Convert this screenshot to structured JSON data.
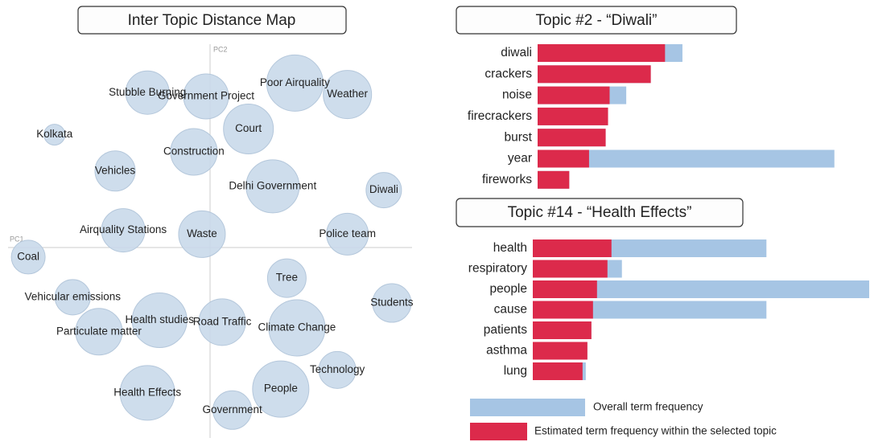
{
  "chart_data": [
    {
      "type": "bubble",
      "title": "Inter Topic Distance Map",
      "xlabel": "PC1",
      "ylabel": "PC2",
      "xlim": [
        -1,
        1
      ],
      "ylim": [
        -1,
        1
      ],
      "labels": [
        "Stubble Burning",
        "Government Project",
        "Poor Airquality",
        "Weather",
        "Court",
        "Kolkata",
        "Construction",
        "Vehicles",
        "Delhi Government",
        "Diwali",
        "Airquality Stations",
        "Waste",
        "Police team",
        "Coal",
        "Tree",
        "Vehicular emissions",
        "Students",
        "Health studies",
        "Road Traffic",
        "Climate Change",
        "Particulate matter",
        "Technology",
        "People",
        "Health Effects",
        "Government"
      ],
      "x": [
        -0.31,
        -0.02,
        0.42,
        0.68,
        0.19,
        -0.77,
        -0.08,
        -0.47,
        0.31,
        0.86,
        -0.43,
        -0.04,
        0.68,
        -0.9,
        0.38,
        -0.68,
        0.9,
        -0.25,
        0.06,
        0.43,
        -0.55,
        0.63,
        0.35,
        -0.31,
        0.11
      ],
      "y": [
        0.81,
        0.79,
        0.86,
        0.8,
        0.62,
        0.59,
        0.5,
        0.4,
        0.32,
        0.3,
        0.09,
        0.07,
        0.07,
        -0.05,
        -0.16,
        -0.26,
        -0.29,
        -0.38,
        -0.39,
        -0.42,
        -0.44,
        -0.64,
        -0.74,
        -0.76,
        -0.85
      ],
      "sizes": [
        27,
        28,
        35,
        30,
        31,
        13,
        29,
        25,
        33,
        22,
        27,
        29,
        26,
        21,
        24,
        22,
        24,
        34,
        29,
        35,
        29,
        23,
        35,
        34,
        24
      ],
      "color": "#c9d9ea"
    },
    {
      "type": "hbar",
      "title": "Topic #2 - “Diwali”",
      "categories": [
        "diwali",
        "crackers",
        "noise",
        "firecrackers",
        "burst",
        "year",
        "fireworks"
      ],
      "xlim": [
        0,
        420
      ],
      "series": [
        {
          "color": "#a6c5e4",
          "values": [
            183,
            143,
            112,
            89,
            86,
            375,
            40
          ]
        },
        {
          "color": "#dc2a4b",
          "values": [
            161,
            143,
            91,
            89,
            86,
            65,
            40
          ]
        }
      ]
    },
    {
      "type": "hbar",
      "title": "Topic #14 - “Health Effects”",
      "categories": [
        "health",
        "respiratory",
        "people",
        "cause",
        "patients",
        "asthma",
        "lung"
      ],
      "xlim": [
        0,
        420
      ],
      "series": [
        {
          "name": "Overall term frequency",
          "color": "#a6c5e4",
          "values": [
            291,
            111,
            419,
            291,
            73,
            68,
            66
          ]
        },
        {
          "name": "Estimated term frequency within the selected topic",
          "color": "#dc2a4b",
          "values": [
            98,
            93,
            80,
            75,
            73,
            68,
            62
          ]
        }
      ]
    }
  ]
}
